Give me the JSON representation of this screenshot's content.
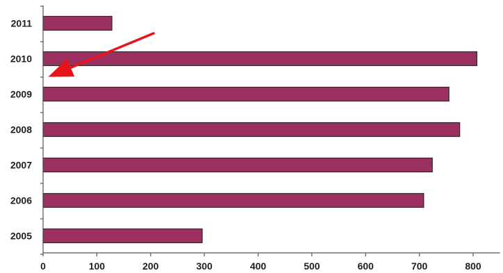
{
  "chart_data": {
    "type": "bar",
    "orientation": "horizontal",
    "categories": [
      "2011",
      "2010",
      "2009",
      "2008",
      "2007",
      "2006",
      "2005"
    ],
    "values": [
      128,
      807,
      755,
      775,
      724,
      708,
      296
    ],
    "title": "",
    "xlabel": "",
    "ylabel": "",
    "xlim": [
      0,
      850
    ],
    "xticks": [
      "0",
      "100",
      "200",
      "300",
      "400",
      "500",
      "600",
      "700",
      "800"
    ],
    "grid": false,
    "legend": "none",
    "bar_color": "#9b3060",
    "bar_edge_color": "#2a2a2a",
    "annotations": [
      {
        "type": "arrow",
        "color": "#e8141b",
        "points_to": "2009"
      }
    ]
  }
}
